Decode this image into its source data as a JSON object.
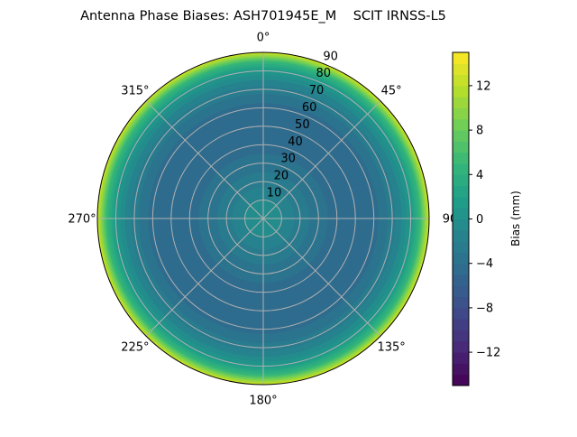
{
  "chart_data": {
    "type": "heatmap",
    "subtype": "polar-contourf",
    "title": "Antenna Phase Biases: ASH701945E_M    SCIT IRNSS-L5",
    "angle_labels": [
      "0°",
      "45°",
      "90",
      "135°",
      "180°",
      "225°",
      "270°",
      "315°"
    ],
    "angle_values": [
      0,
      45,
      90,
      135,
      180,
      225,
      270,
      315
    ],
    "radial_labels": [
      "10",
      "20",
      "30",
      "40",
      "50",
      "60",
      "70",
      "80",
      "90"
    ],
    "radial_values": [
      10,
      20,
      30,
      40,
      50,
      60,
      70,
      80,
      90
    ],
    "radial_range": [
      0,
      90
    ],
    "grid": true,
    "colormap": "viridis",
    "profile_zenith_deg": [
      0,
      10,
      20,
      30,
      40,
      50,
      60,
      70,
      75,
      80,
      85,
      90
    ],
    "profile_bias_mm": [
      0,
      -1,
      -2.5,
      -3.5,
      -4.5,
      -5,
      -4.5,
      -2.5,
      -1,
      1,
      5,
      13
    ],
    "colorbar": {
      "label": "Bias (mm)",
      "range": [
        -15,
        15
      ],
      "level_step": 1,
      "tick_values": [
        12,
        8,
        4,
        0,
        -4,
        -8,
        -12
      ],
      "tick_labels": [
        "12",
        "8",
        "4",
        "0",
        "−4",
        "−8",
        "−12"
      ],
      "placement": "right"
    }
  }
}
